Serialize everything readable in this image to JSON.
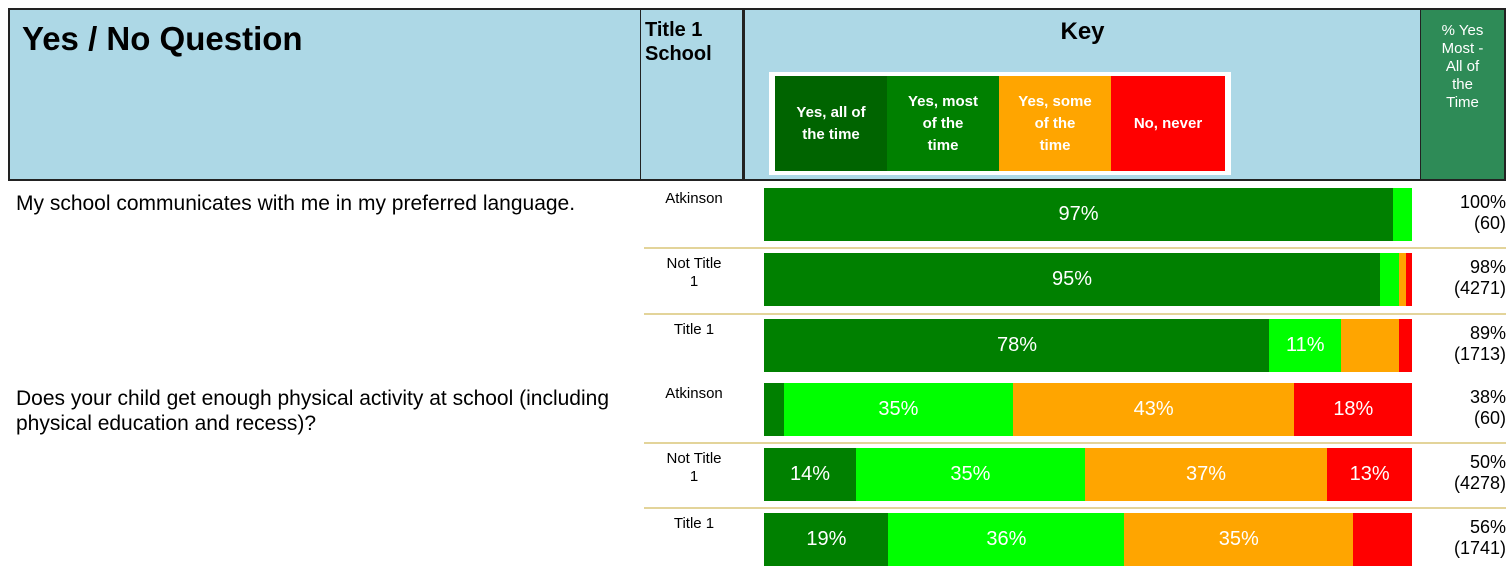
{
  "header": {
    "question_col": "Yes / No Question",
    "school_col": "Title 1\nSchool",
    "key_title": "Key",
    "pct_col": "% Yes\nMost -\nAll of\nthe\nTime"
  },
  "key": [
    {
      "label": "Yes, all of\nthe time",
      "color": "#006400",
      "text_color": "#ffffff"
    },
    {
      "label": "Yes, most\nof the\ntime",
      "color": "#008000",
      "text_color": "#ffffff"
    },
    {
      "label": "Yes, some\nof the\ntime",
      "color": "#ffa500",
      "text_color": "#ffffff"
    },
    {
      "label": "No, never",
      "color": "#ff0000",
      "text_color": "#ffffff"
    }
  ],
  "colors": {
    "all": "#008000",
    "most": "#00ff00",
    "some": "#ffa500",
    "never": "#ff0000"
  },
  "chart_data": {
    "type": "bar",
    "orientation": "horizontal",
    "stacked": true,
    "series_names": [
      "Yes, all of the time",
      "Yes, most of the time",
      "Yes, some of the time",
      "No, never"
    ],
    "questions": [
      {
        "text": " My school communicates with me in my preferred language.",
        "rows": [
          {
            "label": "Atkinson",
            "values": [
              97,
              3,
              0,
              0
            ],
            "labels": [
              "97%",
              "",
              "",
              ""
            ],
            "pct": "100%\n(60)"
          },
          {
            "label": "Not Title\n1",
            "values": [
              95,
              3,
              1,
              1
            ],
            "labels": [
              "95%",
              "",
              "",
              ""
            ],
            "pct": "98%\n(4271)"
          },
          {
            "label": "Title 1",
            "values": [
              78,
              11,
              9,
              2
            ],
            "labels": [
              "78%",
              "11%",
              "",
              ""
            ],
            "pct": "89%\n(1713)"
          }
        ]
      },
      {
        "text": " Does your child get enough physical activity at school (including physical education and recess)?",
        "rows": [
          {
            "label": "Atkinson",
            "values": [
              3,
              35,
              43,
              18
            ],
            "labels": [
              "",
              "35%",
              "43%",
              "18%"
            ],
            "pct": "38%\n(60)"
          },
          {
            "label": "Not Title\n1",
            "values": [
              14,
              35,
              37,
              13
            ],
            "labels": [
              "14%",
              "35%",
              "37%",
              "13%"
            ],
            "pct": "50%\n(4278)"
          },
          {
            "label": "Title 1",
            "values": [
              19,
              36,
              35,
              9
            ],
            "labels": [
              "19%",
              "36%",
              "35%",
              ""
            ],
            "pct": "56%\n(1741)"
          }
        ]
      }
    ]
  }
}
